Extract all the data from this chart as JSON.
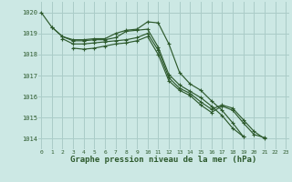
{
  "xlabel_label": "Graphe pression niveau de la mer (hPa)",
  "bg_color": "#cce8e4",
  "grid_color": "#aaccc8",
  "line_color": "#2d5a2d",
  "ylim": [
    1013.5,
    1020.5
  ],
  "xlim": [
    -0.3,
    23.3
  ],
  "yticks": [
    1014,
    1015,
    1016,
    1017,
    1018,
    1019,
    1020
  ],
  "xticks": [
    0,
    1,
    2,
    3,
    4,
    5,
    6,
    7,
    8,
    9,
    10,
    11,
    12,
    13,
    14,
    15,
    16,
    17,
    18,
    19,
    20,
    21,
    22,
    23
  ],
  "series": [
    [
      1020.0,
      1019.3,
      1018.85,
      1018.7,
      1018.7,
      1018.75,
      1018.75,
      1019.0,
      1019.15,
      1019.2,
      1019.55,
      1019.5,
      1018.5,
      1017.15,
      1016.6,
      1016.3,
      1015.8,
      1015.35,
      1014.75,
      1014.1,
      null,
      null,
      null,
      null
    ],
    [
      null,
      1019.3,
      1018.85,
      1018.65,
      1018.65,
      1018.7,
      1018.7,
      1018.8,
      1019.1,
      1019.15,
      1019.2,
      1018.35,
      1017.05,
      1016.55,
      1016.25,
      1015.95,
      1015.55,
      1015.1,
      1014.5,
      1014.1,
      null,
      null,
      null,
      null
    ],
    [
      null,
      null,
      1018.75,
      1018.5,
      1018.5,
      1018.55,
      1018.6,
      1018.65,
      1018.7,
      1018.8,
      1019.0,
      1018.2,
      1016.9,
      1016.4,
      1016.15,
      1015.75,
      1015.4,
      1015.6,
      1015.45,
      1014.9,
      1014.35,
      1014.0,
      null,
      null
    ],
    [
      null,
      null,
      null,
      1018.3,
      1018.25,
      1018.3,
      1018.4,
      1018.5,
      1018.55,
      1018.65,
      1018.85,
      1018.0,
      1016.75,
      1016.3,
      1016.05,
      1015.6,
      1015.25,
      1015.55,
      1015.35,
      1014.75,
      1014.2,
      1014.05,
      null,
      null
    ]
  ],
  "marker_size": 3,
  "linewidth": 0.85
}
